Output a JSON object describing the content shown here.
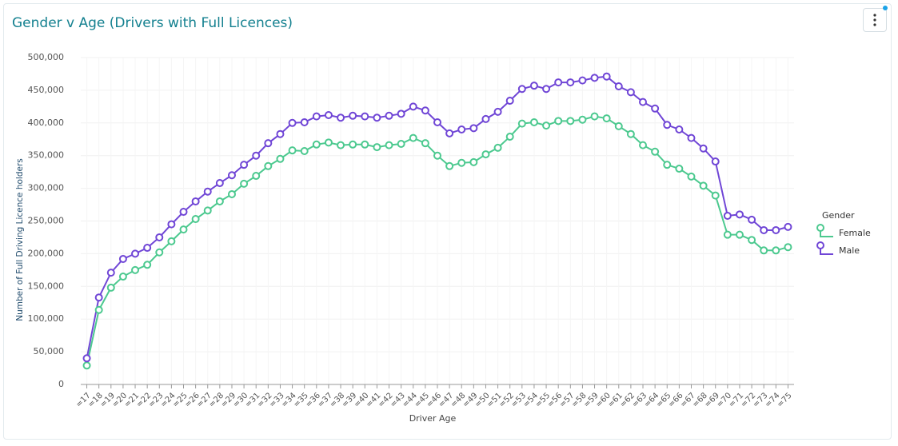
{
  "chart_data": {
    "type": "line",
    "title": "Gender v Age (Drivers with Full Licences)",
    "x_label": "Driver Age",
    "y_label": "Number of Full Driving Licence holders",
    "legend_title": "Gender",
    "legend_position": "right",
    "grid": true,
    "categories": [
      "=17",
      "=18",
      "=19",
      "=20",
      "=21",
      "=22",
      "=23",
      "=24",
      "=25",
      "=26",
      "=27",
      "=28",
      "=29",
      "=30",
      "=31",
      "=32",
      "=33",
      "=34",
      "=35",
      "=36",
      "=37",
      "=38",
      "=39",
      "=40",
      "=41",
      "=42",
      "=43",
      "=44",
      "=45",
      "=46",
      "=47",
      "=48",
      "=49",
      "=50",
      "=51",
      "=52",
      "=53",
      "=54",
      "=55",
      "=56",
      "=57",
      "=58",
      "=59",
      "=60",
      "=61",
      "=62",
      "=63",
      "=64",
      "=65",
      "=66",
      "=67",
      "=68",
      "=69",
      "=70",
      "=71",
      "=72",
      "=73",
      "=74",
      "=75"
    ],
    "series": [
      {
        "name": "Female",
        "color": "#4cc98f",
        "values": [
          29000,
          114000,
          148000,
          165000,
          175000,
          183000,
          202000,
          219000,
          237000,
          253000,
          266000,
          280000,
          291000,
          307000,
          319000,
          334000,
          345000,
          358000,
          357000,
          367000,
          370000,
          366000,
          367000,
          367000,
          363000,
          366000,
          368000,
          377000,
          369000,
          350000,
          334000,
          339000,
          340000,
          352000,
          362000,
          379000,
          399000,
          401000,
          396000,
          403000,
          403000,
          405000,
          410000,
          407000,
          395000,
          383000,
          366000,
          356000,
          336000,
          330000,
          318000,
          304000,
          289000,
          229000,
          229000,
          221000,
          205000,
          205000,
          210000
        ]
      },
      {
        "name": "Male",
        "color": "#7046d6",
        "values": [
          40000,
          133000,
          171000,
          192000,
          200000,
          209000,
          225000,
          245000,
          264000,
          280000,
          295000,
          308000,
          320000,
          336000,
          350000,
          369000,
          383000,
          400000,
          401000,
          410000,
          412000,
          408000,
          411000,
          410000,
          408000,
          411000,
          414000,
          425000,
          419000,
          401000,
          384000,
          390000,
          392000,
          406000,
          417000,
          434000,
          452000,
          457000,
          452000,
          462000,
          462000,
          465000,
          469000,
          471000,
          456000,
          447000,
          432000,
          422000,
          397000,
          390000,
          377000,
          361000,
          341000,
          258000,
          260000,
          252000,
          236000,
          236000,
          241000
        ]
      }
    ],
    "ylim": [
      0,
      500000
    ],
    "yticks": [
      0,
      {
        "value": 50000,
        "label": "50,000"
      },
      {
        "value": 100000,
        "label": "100,000"
      },
      {
        "value": 150000,
        "label": "150,000"
      },
      {
        "value": 200000,
        "label": "200,000"
      },
      {
        "value": 250000,
        "label": "250,000"
      },
      {
        "value": 300000,
        "label": "300,000"
      },
      {
        "value": 350000,
        "label": "350,000"
      },
      {
        "value": 400000,
        "label": "400,000"
      },
      {
        "value": 450000,
        "label": "450,000"
      },
      {
        "value": 500000,
        "label": "500,000"
      }
    ]
  }
}
